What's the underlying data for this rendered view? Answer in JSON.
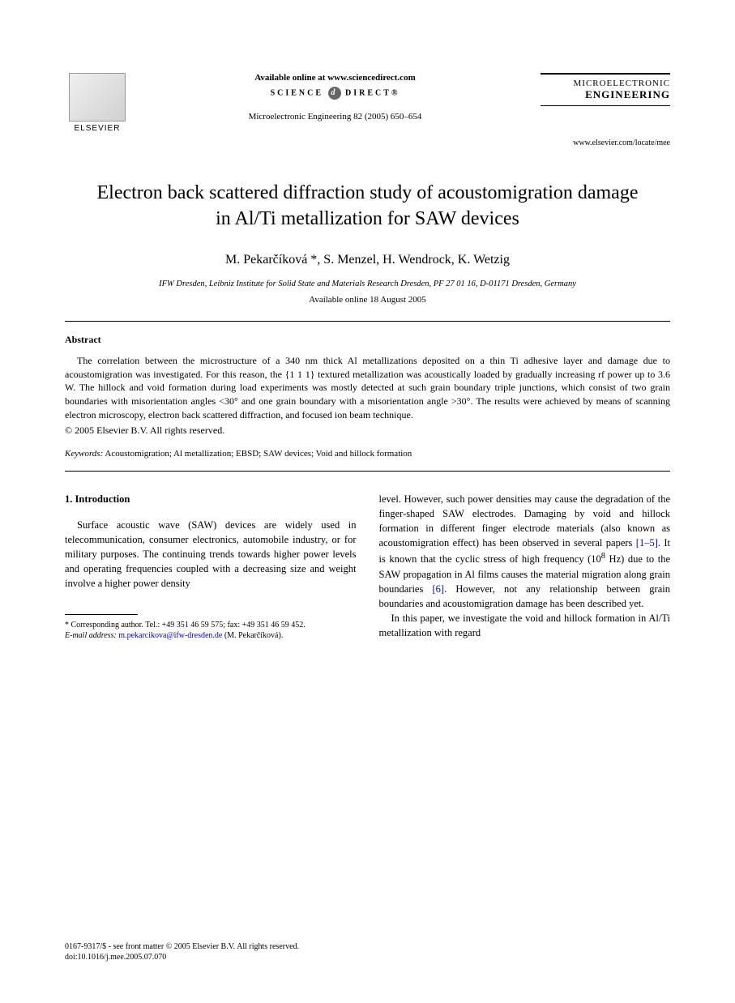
{
  "header": {
    "publisher_name": "ELSEVIER",
    "online_text": "Available online at www.sciencedirect.com",
    "science_direct_1": "SCIENCE",
    "science_direct_2": "DIRECT®",
    "journal_ref": "Microelectronic Engineering 82 (2005) 650–654",
    "journal_name_1": "MICROELECTRONIC",
    "journal_name_2": "ENGINEERING",
    "journal_url": "www.elsevier.com/locate/mee"
  },
  "title": "Electron back scattered diffraction study of acoustomigration damage in Al/Ti metallization for SAW devices",
  "authors": "M. Pekarčíková *, S. Menzel, H. Wendrock, K. Wetzig",
  "affiliation": "IFW Dresden, Leibniz Institute for Solid State and Materials Research Dresden, PF 27 01 16, D-01171 Dresden, Germany",
  "date_online": "Available online 18 August 2005",
  "abstract": {
    "heading": "Abstract",
    "text": "The correlation between the microstructure of a 340 nm thick Al metallizations deposited on a thin Ti adhesive layer and damage due to acoustomigration was investigated. For this reason, the {1 1 1} textured metallization was acoustically loaded by gradually increasing rf power up to 3.6 W. The hillock and void formation during load experiments was mostly detected at such grain boundary triple junctions, which consist of two grain boundaries with misorientation angles <30° and one grain boundary with a misorientation angle >30°. The results were achieved by means of scanning electron microscopy, electron back scattered diffraction, and focused ion beam technique.",
    "copyright": "© 2005 Elsevier B.V. All rights reserved."
  },
  "keywords": {
    "label": "Keywords:",
    "text": "Acoustomigration; Al metallization; EBSD; SAW devices; Void and hillock formation"
  },
  "section1": {
    "heading": "1. Introduction",
    "col1_p1": "Surface acoustic wave (SAW) devices are widely used in telecommunication, consumer electronics, automobile industry, or for military purposes. The continuing trends towards higher power levels and operating frequencies coupled with a decreasing size and weight involve a higher power density",
    "col2_p1a": "level. However, such power densities may cause the degradation of the finger-shaped SAW electrodes. Damaging by void and hillock formation in different finger electrode materials (also known as acoustomigration effect) has been observed in several papers ",
    "col2_ref1": "[1–5]",
    "col2_p1b": ". It is known that the cyclic stress of high frequency (10",
    "col2_sup": "8",
    "col2_p1c": " Hz) due to the SAW propagation in Al films causes the material migration along grain boundaries ",
    "col2_ref2": "[6]",
    "col2_p1d": ". However, not any relationship between grain boundaries and acoustomigration damage has been described yet.",
    "col2_p2": "In this paper, we investigate the void and hillock formation in Al/Ti metallization with regard"
  },
  "footnote": {
    "corresponding": "* Corresponding author. Tel.: +49 351 46 59 575; fax: +49 351 46 59 452.",
    "email_label": "E-mail address:",
    "email": "m.pekarcikova@ifw-dresden.de",
    "email_name": "(M. Pekarčíková)."
  },
  "footer": {
    "line1": "0167-9317/$ - see front matter © 2005 Elsevier B.V. All rights reserved.",
    "line2": "doi:10.1016/j.mee.2005.07.070"
  }
}
